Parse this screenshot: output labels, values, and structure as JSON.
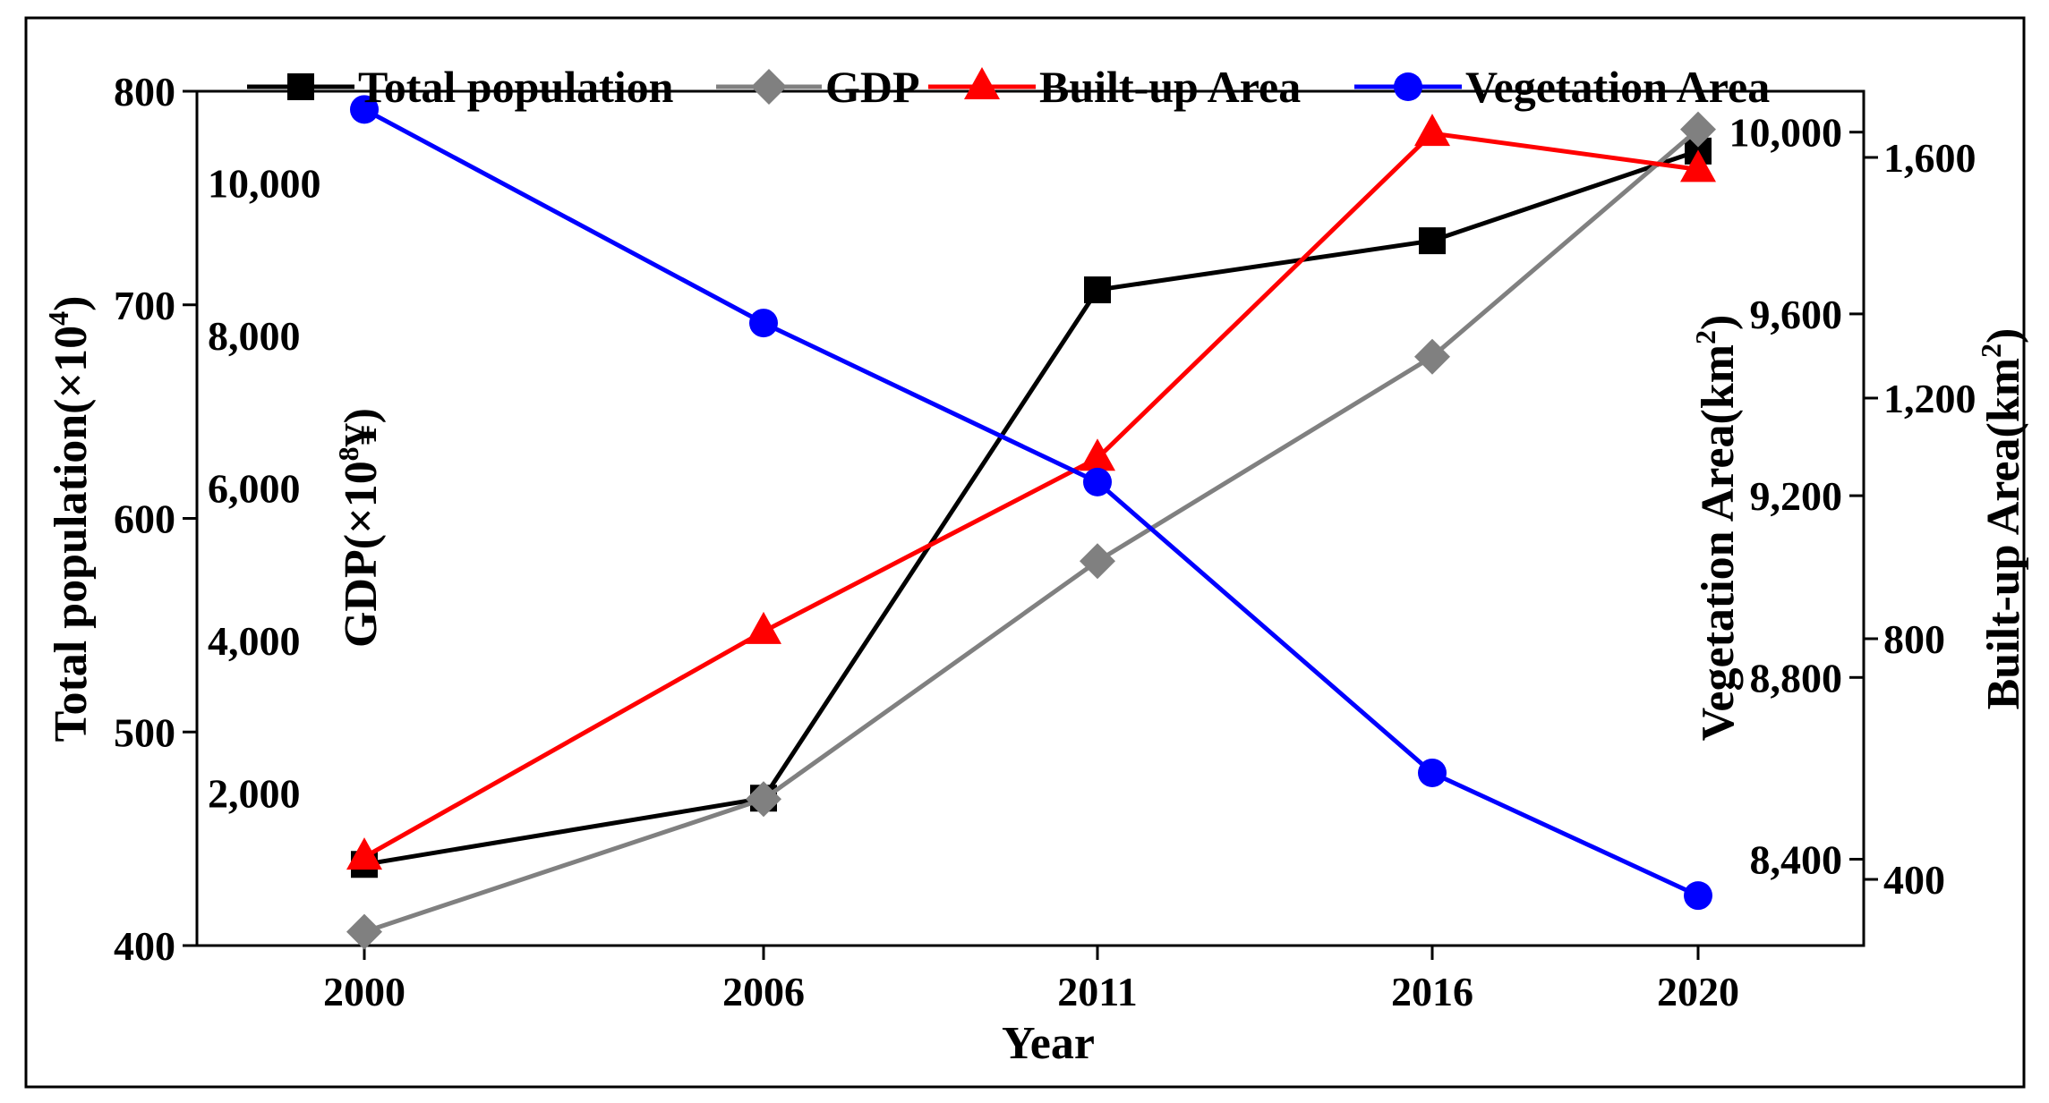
{
  "chart_data": {
    "type": "line",
    "categories": [
      "2000",
      "2006",
      "2011",
      "2016",
      "2020"
    ],
    "xlabel": "Year",
    "axes": {
      "population": {
        "label": "Total population(×10",
        "label_sup": "4",
        "label_close": ")",
        "range": [
          400,
          800
        ],
        "ticks": [
          "400",
          "500",
          "600",
          "700",
          "800"
        ]
      },
      "gdp": {
        "label": "GDP(×10",
        "label_sup": "8",
        "label_close": "¥)",
        "range": [
          0,
          11200
        ],
        "ticks": [
          "2,000",
          "4,000",
          "6,000",
          "8,000",
          "10,000"
        ]
      },
      "vegetation": {
        "label": "Vegetation Area(km",
        "label_sup": "2",
        "label_close": ")",
        "range": [
          8210,
          10090
        ],
        "ticks": [
          "8,400",
          "8,800",
          "9,200",
          "9,600",
          "10,000"
        ]
      },
      "builtup": {
        "label": "Built-up Area(km",
        "label_sup": "2",
        "label_close": ")",
        "range": [
          290,
          1710
        ],
        "ticks": [
          "400",
          "800",
          "1,200",
          "1,600"
        ]
      }
    },
    "series": [
      {
        "name": "Total population",
        "axis": "population",
        "color": "#000000",
        "marker": "square",
        "values": [
          438,
          469,
          707,
          730,
          772
        ]
      },
      {
        "name": "GDP",
        "axis": "gdp",
        "color": "#808080",
        "marker": "diamond",
        "values": [
          180,
          1920,
          5040,
          7720,
          10700
        ]
      },
      {
        "name": "Built-up Area",
        "axis": "builtup",
        "color": "#ff0000",
        "marker": "triangle",
        "values": [
          437,
          812,
          1100,
          1640,
          1580
        ]
      },
      {
        "name": "Vegetation Area",
        "axis": "vegetation",
        "color": "#0000ff",
        "marker": "circle",
        "values": [
          10050,
          9580,
          9230,
          8590,
          8320
        ]
      }
    ]
  }
}
